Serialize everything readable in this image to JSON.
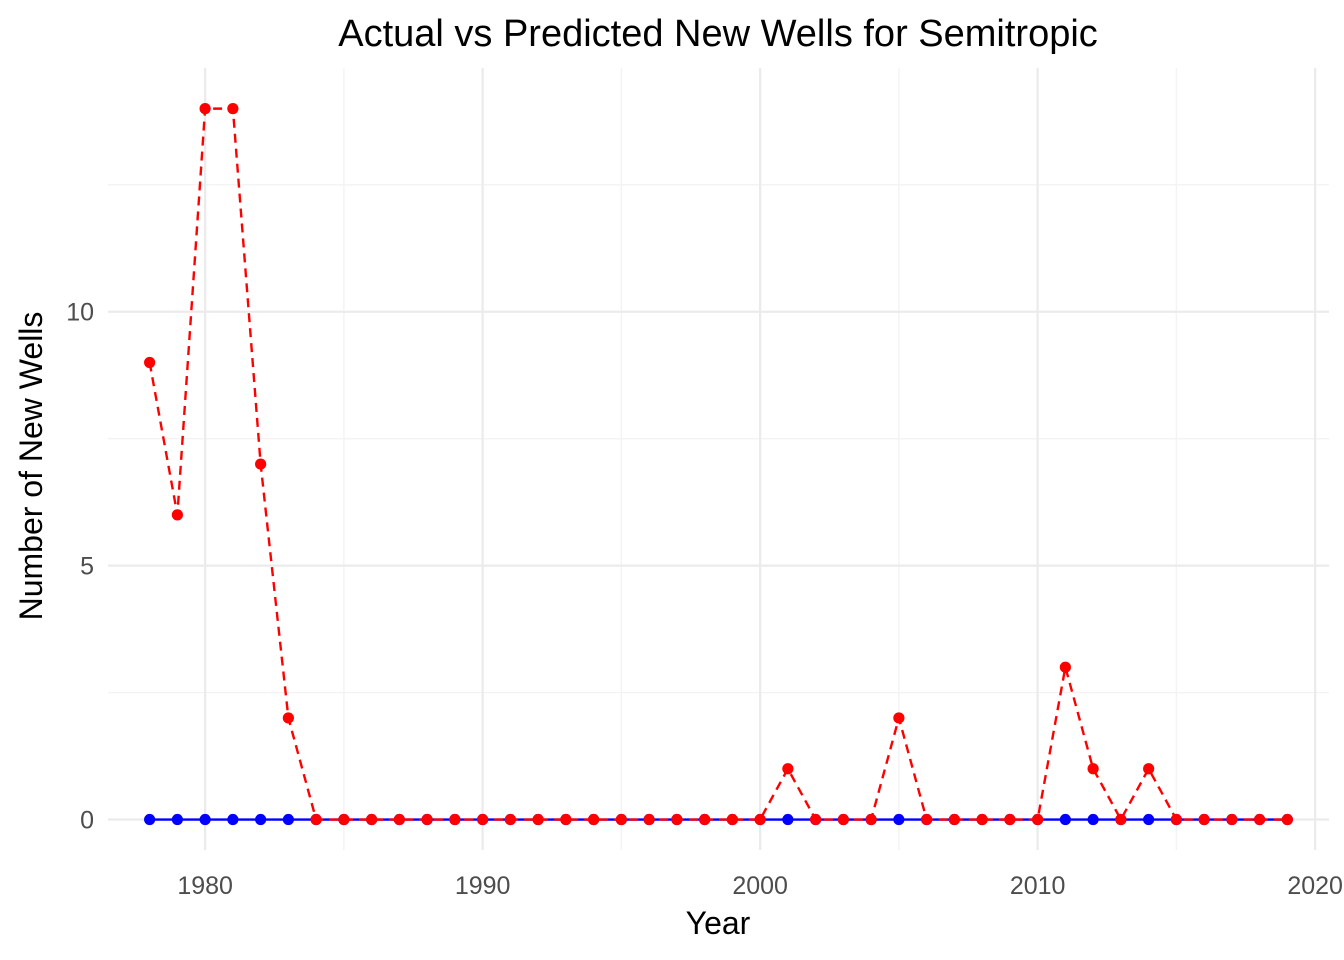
{
  "chart_data": {
    "type": "line",
    "title": "Actual vs Predicted New Wells for Semitropic",
    "xlabel": "Year",
    "ylabel": "Number of New Wells",
    "xlim": [
      1976.5,
      2020.5
    ],
    "ylim": [
      -0.6,
      14.8
    ],
    "x_ticks": [
      1980,
      1990,
      2000,
      2010,
      2020
    ],
    "y_ticks": [
      0,
      5,
      10
    ],
    "grid": true,
    "legend": "none",
    "x": [
      1978,
      1979,
      1980,
      1981,
      1982,
      1983,
      1984,
      1985,
      1986,
      1987,
      1988,
      1989,
      1990,
      1991,
      1992,
      1993,
      1994,
      1995,
      1996,
      1997,
      1998,
      1999,
      2000,
      2001,
      2002,
      2003,
      2004,
      2005,
      2006,
      2007,
      2008,
      2009,
      2010,
      2011,
      2012,
      2013,
      2014,
      2015,
      2016,
      2017,
      2018,
      2019
    ],
    "series": [
      {
        "color": "#0000ff",
        "line_style": "solid",
        "values": [
          0,
          0,
          0,
          0,
          0,
          0,
          0,
          0,
          0,
          0,
          0,
          0,
          0,
          0,
          0,
          0,
          0,
          0,
          0,
          0,
          0,
          0,
          0,
          0,
          0,
          0,
          0,
          0,
          0,
          0,
          0,
          0,
          0,
          0,
          0,
          0,
          0,
          0,
          0,
          0,
          0,
          0
        ]
      },
      {
        "color": "#ff0000",
        "line_style": "dashed",
        "values": [
          9,
          6,
          14,
          14,
          7,
          2,
          0,
          0,
          0,
          0,
          0,
          0,
          0,
          0,
          0,
          0,
          0,
          0,
          0,
          0,
          0,
          0,
          0,
          1,
          0,
          0,
          0,
          2,
          0,
          0,
          0,
          0,
          0,
          3,
          1,
          0,
          1,
          0,
          0,
          0,
          0,
          0
        ]
      }
    ]
  }
}
